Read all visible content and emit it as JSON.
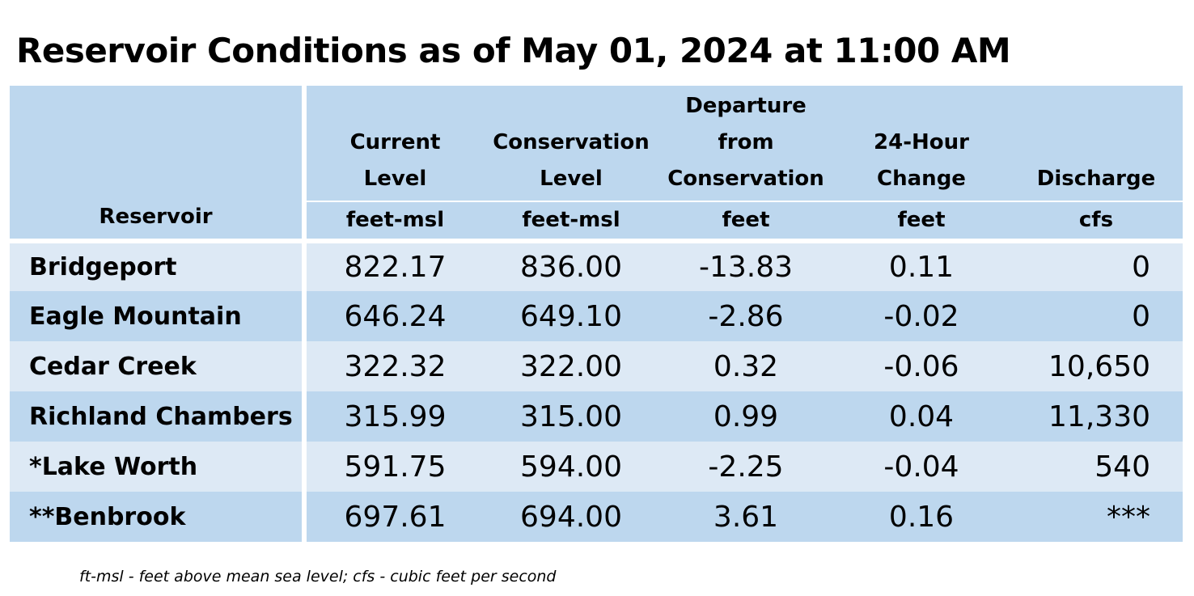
{
  "title": "Reservoir Conditions as of May 01, 2024 at 11:00 AM",
  "headers": [
    {
      "label": "Reservoir",
      "unit": ""
    },
    {
      "label": "Current\nLevel",
      "unit": "feet-msl"
    },
    {
      "label": "Conservation\nLevel",
      "unit": "feet-msl"
    },
    {
      "label": "Departure\nfrom\nConservation",
      "unit": "feet"
    },
    {
      "label": "24-Hour\nChange",
      "unit": "feet"
    },
    {
      "label": "Discharge",
      "unit": "cfs"
    }
  ],
  "rows": [
    {
      "name": "Bridgeport",
      "current": "822.17",
      "conservation": "836.00",
      "departure": "-13.83",
      "change": "0.11",
      "discharge": "0"
    },
    {
      "name": "Eagle Mountain",
      "current": "646.24",
      "conservation": "649.10",
      "departure": "-2.86",
      "change": "-0.02",
      "discharge": "0"
    },
    {
      "name": "Cedar Creek",
      "current": "322.32",
      "conservation": "322.00",
      "departure": "0.32",
      "change": "-0.06",
      "discharge": "10,650"
    },
    {
      "name": "Richland Chambers",
      "current": "315.99",
      "conservation": "315.00",
      "departure": "0.99",
      "change": "0.04",
      "discharge": "11,330"
    },
    {
      "name": "*Lake Worth",
      "current": "591.75",
      "conservation": "594.00",
      "departure": "-2.25",
      "change": "-0.04",
      "discharge": "540"
    },
    {
      "name": "**Benbrook",
      "current": "697.61",
      "conservation": "694.00",
      "departure": "3.61",
      "change": "0.16",
      "discharge": "***"
    }
  ],
  "footnote": "ft-msl - feet above mean sea level; cfs - cubic feet per second",
  "colors": {
    "header_bg": "#bdd7ee",
    "row_light": "#dde9f5",
    "row_dark": "#bdd7ee"
  }
}
